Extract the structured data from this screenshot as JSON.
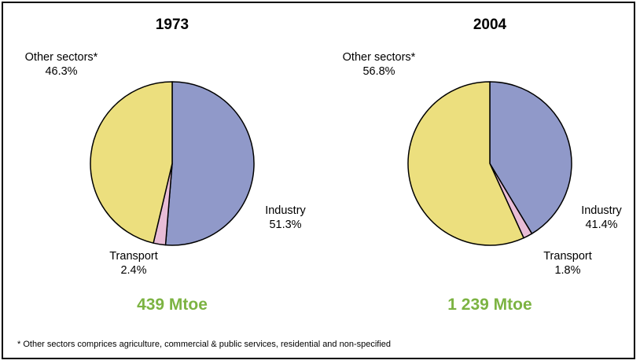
{
  "chart_data": [
    {
      "type": "pie",
      "title": "1973",
      "total": "439 Mtoe",
      "slices": [
        {
          "label": "Industry",
          "value": 51.3,
          "value_label": "51.3%",
          "color": "#9099c9"
        },
        {
          "label": "Transport",
          "value": 2.4,
          "value_label": "2.4%",
          "color": "#e8bcd6"
        },
        {
          "label": "Other sectors*",
          "value": 46.3,
          "value_label": "46.3%",
          "color": "#ecdf7e"
        }
      ]
    },
    {
      "type": "pie",
      "title": "2004",
      "total": "1 239 Mtoe",
      "slices": [
        {
          "label": "Industry",
          "value": 41.4,
          "value_label": "41.4%",
          "color": "#9099c9"
        },
        {
          "label": "Transport",
          "value": 1.8,
          "value_label": "1.8%",
          "color": "#e8bcd6"
        },
        {
          "label": "Other sectors*",
          "value": 56.8,
          "value_label": "56.8%",
          "color": "#ecdf7e"
        }
      ]
    }
  ],
  "footnote": "* Other sectors comprices agriculture, commercial & public services, residential and non-specified"
}
